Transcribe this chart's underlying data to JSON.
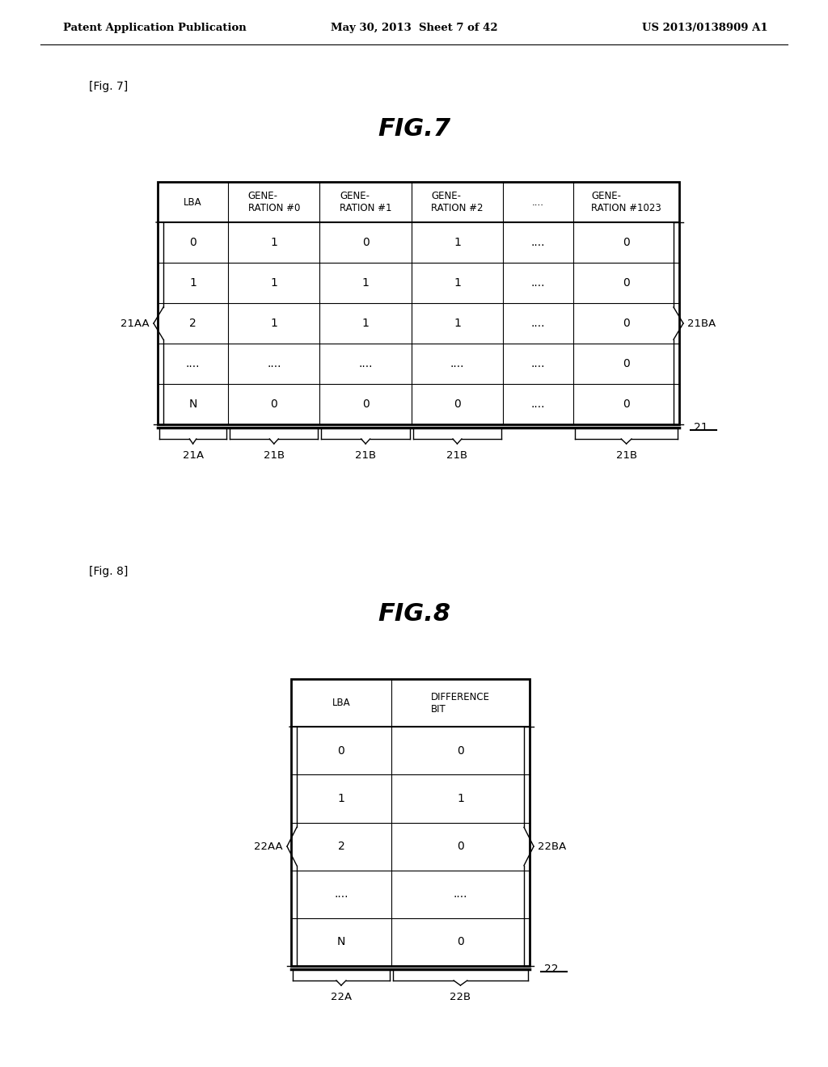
{
  "bg_color": "#ffffff",
  "header_text": {
    "left": "Patent Application Publication",
    "middle": "May 30, 2013  Sheet 7 of 42",
    "right": "US 2013/0138909 A1"
  },
  "fig7": {
    "label": "[Fig. 7]",
    "title": "FIG.7",
    "col_headers": [
      "LBA",
      "GENE-\nRATION #0",
      "GENE-\nRATION #1",
      "GENE-\nRATION #2",
      "....",
      "GENE-\nRATION #1023"
    ],
    "rows": [
      [
        "0",
        "1",
        "0",
        "1",
        "....",
        "0"
      ],
      [
        "1",
        "1",
        "1",
        "1",
        "....",
        "0"
      ],
      [
        "2",
        "1",
        "1",
        "1",
        "....",
        "0"
      ],
      [
        "....",
        "....",
        "....",
        "....",
        "....",
        "0"
      ],
      [
        "N",
        "0",
        "0",
        "0",
        "....",
        "0"
      ]
    ],
    "left_brace_label": "21AA",
    "right_brace_label": "21BA",
    "bottom_label": "21",
    "col_labels_bottom": [
      "21A",
      "21B",
      "21B",
      "21B",
      "",
      "21B"
    ]
  },
  "fig8": {
    "label": "[Fig. 8]",
    "title": "FIG.8",
    "col_headers": [
      "LBA",
      "DIFFERENCE\nBIT"
    ],
    "rows": [
      [
        "0",
        "0"
      ],
      [
        "1",
        "1"
      ],
      [
        "2",
        "0"
      ],
      [
        "....",
        "...."
      ],
      [
        "N",
        "0"
      ]
    ],
    "left_brace_label": "22AA",
    "right_brace_label": "22BA",
    "bottom_label": "22",
    "col_labels_bottom": [
      "22A",
      "22B"
    ]
  }
}
